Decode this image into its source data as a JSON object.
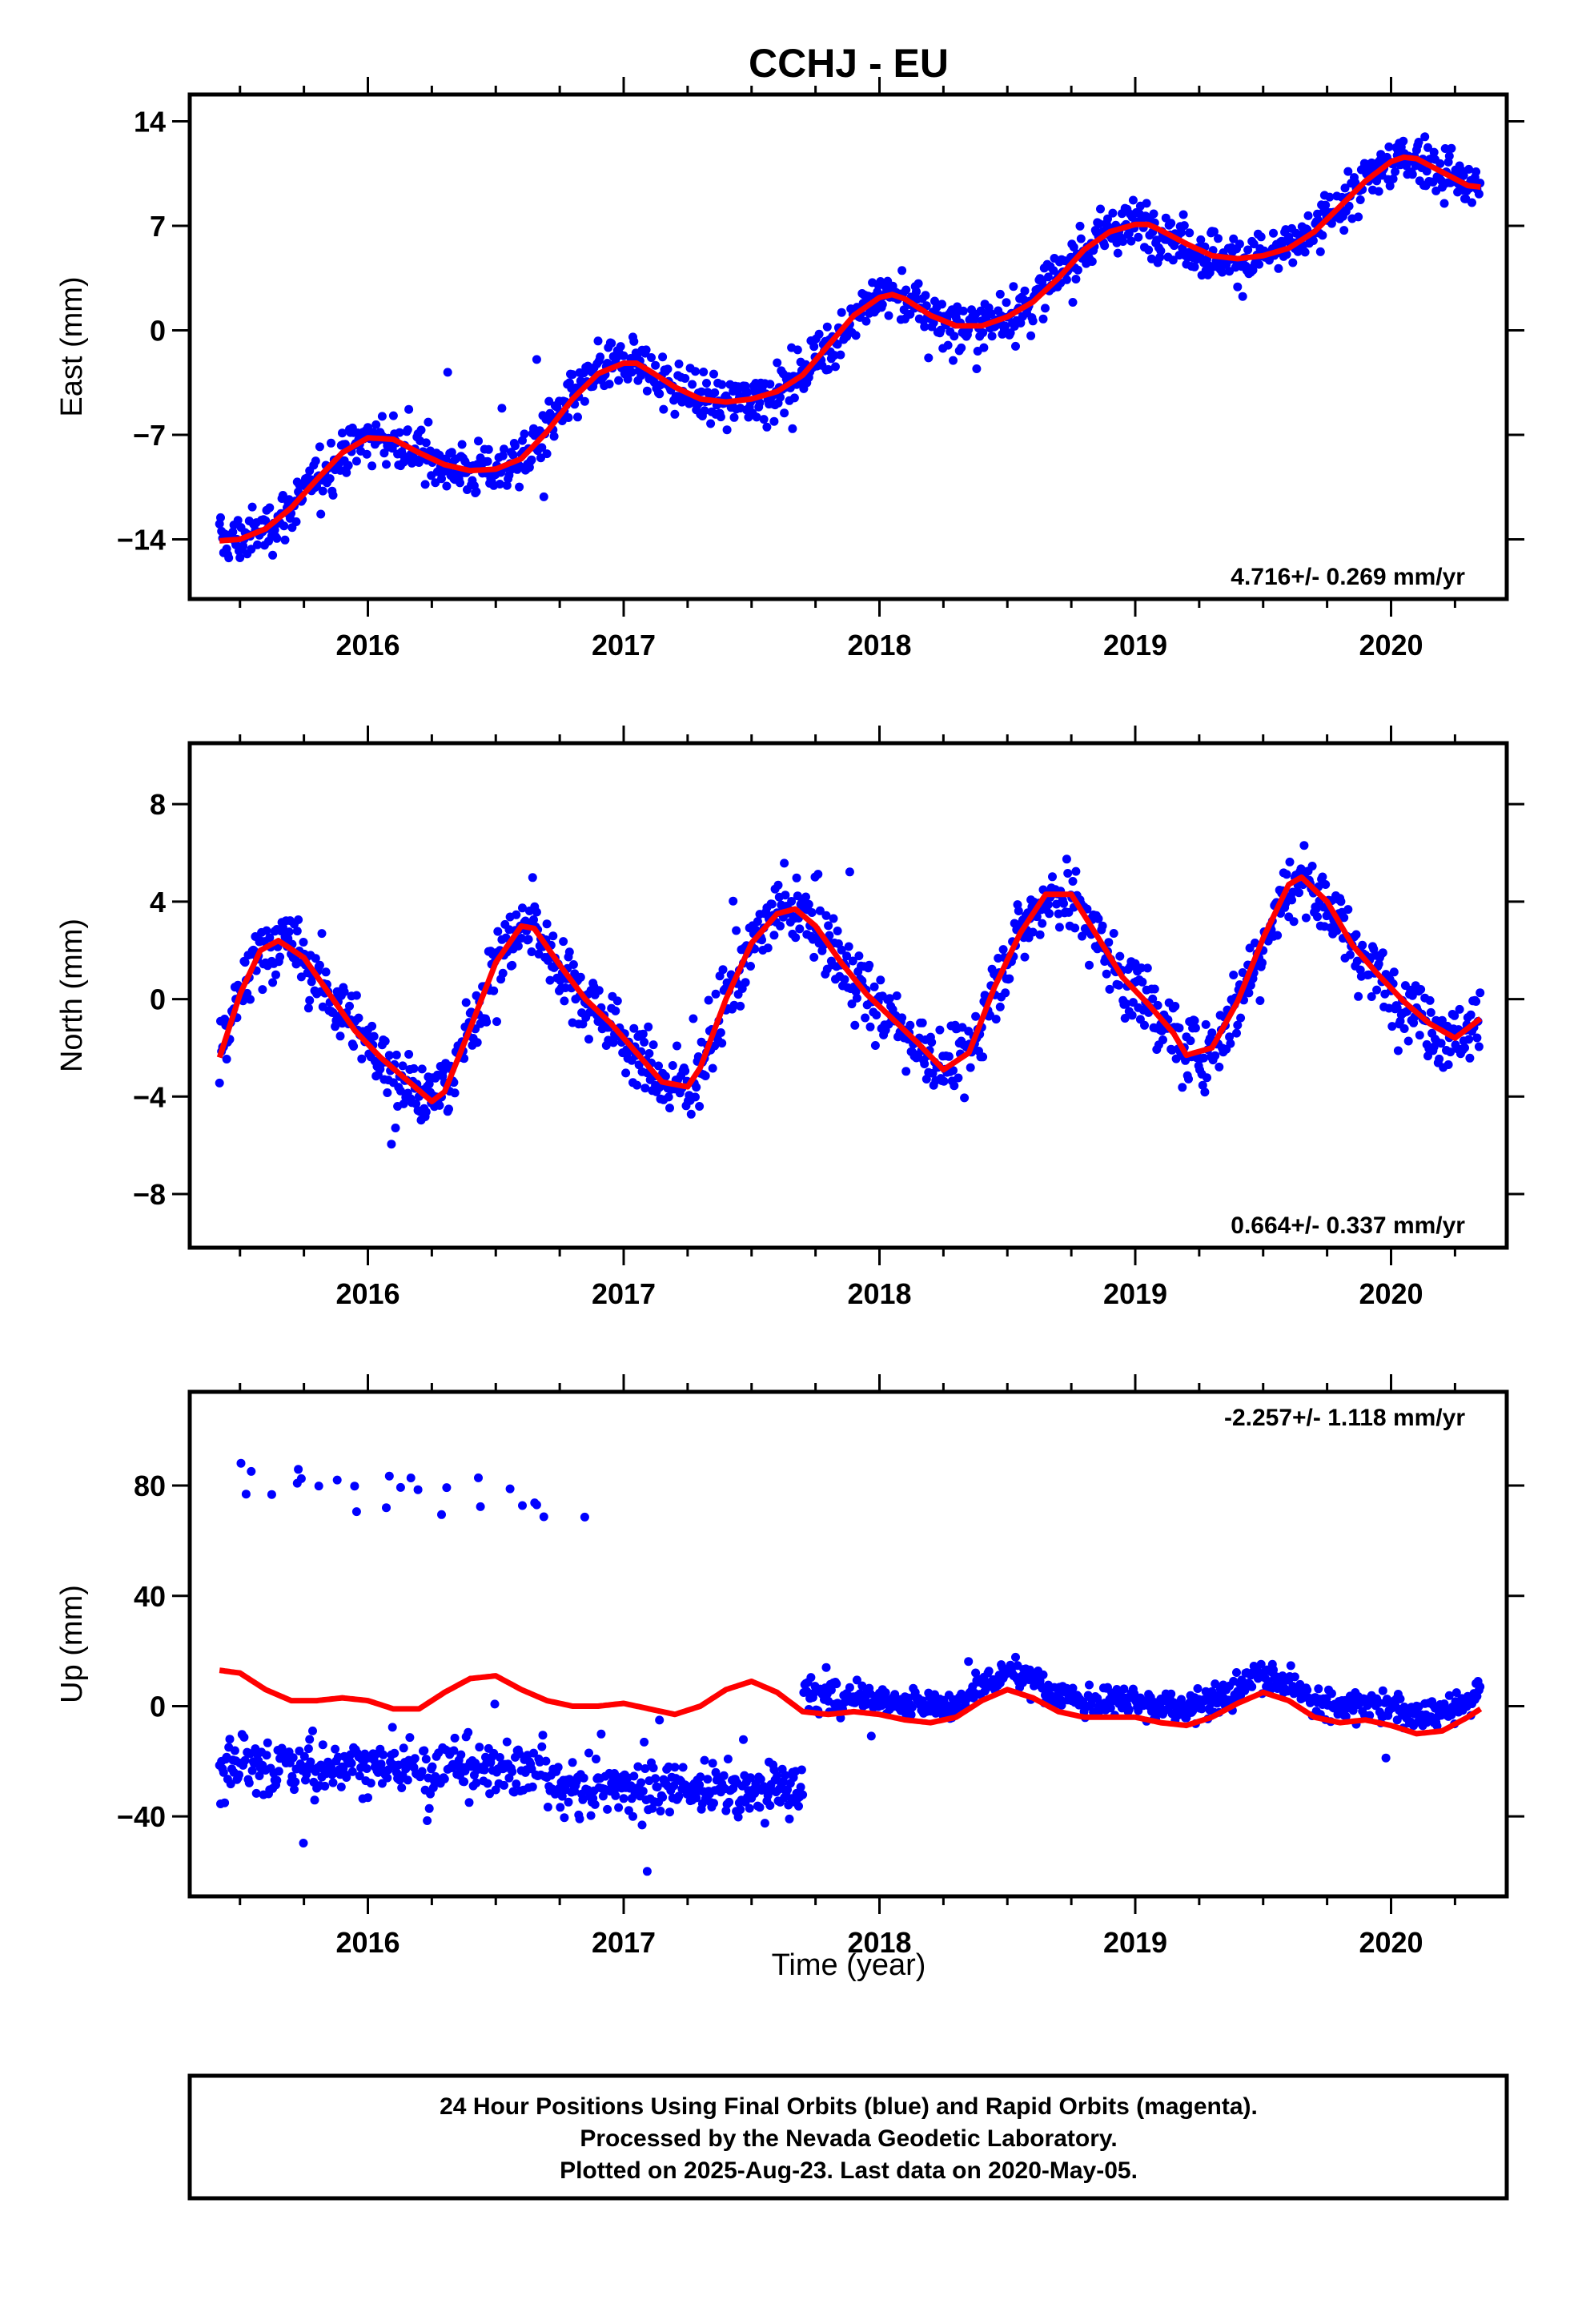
{
  "title": "CCHJ - EU",
  "xlabel": "Time (year)",
  "caption": {
    "lines": [
      "24 Hour Positions Using Final Orbits (blue) and Rapid Orbits (magenta).",
      "Processed by the Nevada Geodetic Laboratory.",
      "Plotted on 2025-Aug-23. Last data on 2020-May-05."
    ]
  },
  "colors": {
    "data": "#0000ff",
    "model": "#ff0000",
    "frame": "#000000"
  },
  "chart_data": [
    {
      "type": "scatter",
      "title": "CCHJ - EU",
      "ylabel": "East (mm)",
      "rate_label": "4.716+/- 0.269 mm/yr",
      "rate_position": "bottom-right",
      "xlim": [
        2015.32,
        2020.45
      ],
      "ylim": [
        -18,
        15.8
      ],
      "xticks": [
        "2016",
        "2017",
        "2018",
        "2019",
        "2020"
      ],
      "yticks": [
        "14",
        "7",
        "0",
        "−7",
        "−14"
      ],
      "ytick_values": [
        14,
        7,
        0,
        -7,
        -14
      ],
      "series": [
        {
          "x": [
            2015.42,
            2015.5,
            2015.6,
            2015.7,
            2015.8,
            2015.9,
            2016.0,
            2016.1,
            2016.2,
            2016.3,
            2016.4,
            2016.5,
            2016.6,
            2016.7,
            2016.8,
            2016.9,
            2017.0,
            2017.05,
            2017.1,
            2017.2,
            2017.3,
            2017.4,
            2017.5,
            2017.6,
            2017.7,
            2017.8,
            2017.9,
            2018.0,
            2018.05,
            2018.1,
            2018.2,
            2018.3,
            2018.4,
            2018.5,
            2018.6,
            2018.7,
            2018.8,
            2018.9,
            2019.0,
            2019.05,
            2019.1,
            2019.2,
            2019.3,
            2019.4,
            2019.5,
            2019.6,
            2019.7,
            2019.8,
            2019.9,
            2020.0,
            2020.05,
            2020.1,
            2020.2,
            2020.3,
            2020.35
          ],
          "values": [
            -14.1,
            -14.0,
            -13.3,
            -11.9,
            -10.0,
            -8.2,
            -7.2,
            -7.3,
            -8.2,
            -9.0,
            -9.4,
            -9.3,
            -8.6,
            -6.8,
            -4.6,
            -2.9,
            -2.2,
            -2.2,
            -2.7,
            -3.8,
            -4.6,
            -4.8,
            -4.6,
            -4.1,
            -3.0,
            -1.0,
            1.0,
            2.2,
            2.4,
            2.1,
            1.0,
            0.3,
            0.3,
            0.9,
            1.9,
            3.5,
            5.4,
            6.6,
            7.1,
            7.1,
            6.7,
            5.8,
            5.0,
            4.8,
            5.0,
            5.5,
            6.6,
            8.3,
            10.0,
            11.3,
            11.6,
            11.5,
            10.6,
            9.7,
            9.6
          ]
        }
      ]
    },
    {
      "type": "scatter",
      "ylabel": "North (mm)",
      "rate_label": "0.664+/- 0.337 mm/yr",
      "rate_position": "bottom-right",
      "xlim": [
        2015.32,
        2020.45
      ],
      "ylim": [
        -10.2,
        10.5
      ],
      "xticks": [
        "2016",
        "2017",
        "2018",
        "2019",
        "2020"
      ],
      "yticks": [
        "8",
        "4",
        "0",
        "−4",
        "−8"
      ],
      "ytick_values": [
        8,
        4,
        0,
        -4,
        -8
      ],
      "series": [
        {
          "x": [
            2015.42,
            2015.5,
            2015.58,
            2015.65,
            2015.75,
            2015.85,
            2015.95,
            2016.05,
            2016.15,
            2016.25,
            2016.3,
            2016.4,
            2016.5,
            2016.6,
            2016.65,
            2016.75,
            2016.85,
            2016.95,
            2017.05,
            2017.15,
            2017.25,
            2017.3,
            2017.4,
            2017.5,
            2017.6,
            2017.67,
            2017.75,
            2017.85,
            2017.95,
            2018.05,
            2018.15,
            2018.25,
            2018.35,
            2018.45,
            2018.55,
            2018.65,
            2018.75,
            2018.85,
            2018.95,
            2019.05,
            2019.15,
            2019.2,
            2019.3,
            2019.4,
            2019.5,
            2019.6,
            2019.65,
            2019.75,
            2019.85,
            2019.95,
            2020.05,
            2020.15,
            2020.25,
            2020.35
          ],
          "values": [
            -2.4,
            0.2,
            2.0,
            2.4,
            1.7,
            0.2,
            -1.3,
            -2.4,
            -3.3,
            -4.2,
            -3.8,
            -1.2,
            1.5,
            3.0,
            2.9,
            1.4,
            0.0,
            -1.0,
            -2.2,
            -3.4,
            -3.6,
            -2.8,
            0.0,
            2.3,
            3.5,
            3.7,
            3.0,
            1.5,
            0.2,
            -0.8,
            -1.8,
            -2.9,
            -2.2,
            0.5,
            2.7,
            4.3,
            4.3,
            2.6,
            0.9,
            -0.2,
            -1.4,
            -2.3,
            -2.0,
            -0.1,
            2.5,
            4.7,
            5.0,
            4.0,
            2.2,
            1.0,
            -0.1,
            -1.0,
            -1.6,
            -0.8
          ]
        }
      ]
    },
    {
      "type": "scatter",
      "ylabel": "Up (mm)",
      "rate_label": "-2.257+/- 1.118 mm/yr",
      "rate_position": "top-right",
      "xlim": [
        2015.32,
        2020.45
      ],
      "ylim": [
        -69,
        114
      ],
      "xticks": [
        "2016",
        "2017",
        "2018",
        "2019",
        "2020"
      ],
      "yticks": [
        "80",
        "40",
        "0",
        "−40"
      ],
      "ytick_values": [
        80,
        40,
        0,
        -40
      ],
      "series": [
        {
          "x": [
            2015.42,
            2015.5,
            2015.6,
            2015.7,
            2015.8,
            2015.9,
            2016.0,
            2016.1,
            2016.2,
            2016.3,
            2016.4,
            2016.5,
            2016.6,
            2016.7,
            2016.8,
            2016.9,
            2017.0,
            2017.1,
            2017.2,
            2017.3,
            2017.4,
            2017.5,
            2017.6,
            2017.7,
            2017.8,
            2017.9,
            2018.0,
            2018.1,
            2018.2,
            2018.3,
            2018.4,
            2018.5,
            2018.6,
            2018.7,
            2018.8,
            2018.9,
            2019.0,
            2019.1,
            2019.2,
            2019.3,
            2019.4,
            2019.5,
            2019.6,
            2019.7,
            2019.8,
            2019.9,
            2020.0,
            2020.1,
            2020.2,
            2020.3,
            2020.35
          ],
          "values": [
            13,
            12,
            6,
            2,
            2,
            3,
            2,
            -1,
            -1,
            5,
            10,
            11,
            6,
            2,
            0,
            0,
            1,
            -1,
            -3,
            0,
            6,
            9,
            5,
            -2,
            -3,
            -2,
            -3,
            -5,
            -6,
            -4,
            2,
            6,
            3,
            -2,
            -4,
            -4,
            -4,
            -6,
            -7,
            -4,
            1,
            5,
            2,
            -4,
            -6,
            -5,
            -7,
            -10,
            -9,
            -4,
            -1
          ]
        }
      ]
    }
  ]
}
